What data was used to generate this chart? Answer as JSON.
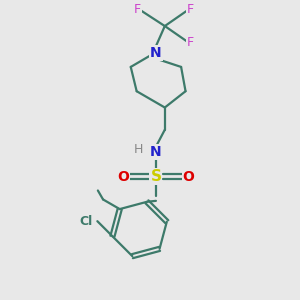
{
  "bg_color": "#e8e8e8",
  "bond_color": "#3d7a6a",
  "N_color": "#2222cc",
  "F_color": "#cc44cc",
  "S_color": "#cccc00",
  "O_color": "#dd0000",
  "Cl_color": "#3d7a6a",
  "H_color": "#888888",
  "methyl_color": "#3d7a6a",
  "line_width": 1.6,
  "figsize": [
    3.0,
    3.0
  ],
  "dpi": 100,
  "xlim": [
    0,
    10
  ],
  "ylim": [
    0,
    10
  ]
}
